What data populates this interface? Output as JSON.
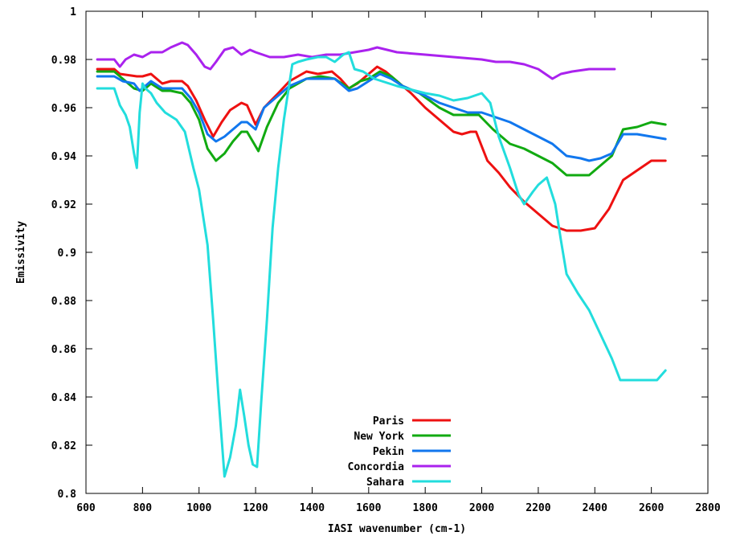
{
  "chart_data": {
    "type": "line",
    "title": "",
    "xlabel": "IASI wavenumber (cm-1)",
    "ylabel": "Emissivity",
    "xlim": [
      600,
      2800
    ],
    "ylim": [
      0.8,
      1.0
    ],
    "x_ticks": [
      600,
      800,
      1000,
      1200,
      1400,
      1600,
      1800,
      2000,
      2200,
      2400,
      2600,
      2800
    ],
    "x_tick_labels": [
      "600",
      "800",
      "1000",
      "1200",
      "1400",
      "1600",
      "1800",
      "2000",
      "2200",
      "2400",
      "2600",
      "2800"
    ],
    "y_ticks": [
      0.8,
      0.82,
      0.84,
      0.86,
      0.88,
      0.9,
      0.92,
      0.94,
      0.96,
      0.98,
      1.0
    ],
    "y_tick_labels": [
      "0.8",
      "0.82",
      "0.84",
      "0.86",
      "0.88",
      "0.9",
      "0.92",
      "0.94",
      "0.96",
      "0.98",
      "1"
    ],
    "grid": false,
    "legend_position": "bottom-center",
    "series": [
      {
        "name": "Paris",
        "color": "#ee1111",
        "points": [
          [
            640,
            0.976
          ],
          [
            700,
            0.976
          ],
          [
            720,
            0.974
          ],
          [
            780,
            0.973
          ],
          [
            800,
            0.973
          ],
          [
            830,
            0.974
          ],
          [
            870,
            0.97
          ],
          [
            900,
            0.971
          ],
          [
            940,
            0.971
          ],
          [
            960,
            0.969
          ],
          [
            990,
            0.963
          ],
          [
            1020,
            0.955
          ],
          [
            1050,
            0.948
          ],
          [
            1080,
            0.954
          ],
          [
            1110,
            0.959
          ],
          [
            1150,
            0.962
          ],
          [
            1170,
            0.961
          ],
          [
            1200,
            0.953
          ],
          [
            1230,
            0.96
          ],
          [
            1280,
            0.966
          ],
          [
            1320,
            0.971
          ],
          [
            1380,
            0.975
          ],
          [
            1420,
            0.974
          ],
          [
            1470,
            0.975
          ],
          [
            1500,
            0.972
          ],
          [
            1530,
            0.968
          ],
          [
            1560,
            0.97
          ],
          [
            1600,
            0.974
          ],
          [
            1630,
            0.977
          ],
          [
            1660,
            0.975
          ],
          [
            1700,
            0.971
          ],
          [
            1750,
            0.966
          ],
          [
            1800,
            0.96
          ],
          [
            1850,
            0.955
          ],
          [
            1900,
            0.95
          ],
          [
            1930,
            0.949
          ],
          [
            1960,
            0.95
          ],
          [
            1980,
            0.95
          ],
          [
            2000,
            0.944
          ],
          [
            2020,
            0.938
          ],
          [
            2060,
            0.933
          ],
          [
            2100,
            0.927
          ],
          [
            2150,
            0.921
          ],
          [
            2200,
            0.916
          ],
          [
            2250,
            0.911
          ],
          [
            2300,
            0.909
          ],
          [
            2350,
            0.909
          ],
          [
            2400,
            0.91
          ],
          [
            2450,
            0.918
          ],
          [
            2500,
            0.93
          ],
          [
            2550,
            0.934
          ],
          [
            2600,
            0.938
          ],
          [
            2650,
            0.938
          ]
        ]
      },
      {
        "name": "New York",
        "color": "#11aa11",
        "points": [
          [
            640,
            0.975
          ],
          [
            700,
            0.975
          ],
          [
            730,
            0.972
          ],
          [
            770,
            0.968
          ],
          [
            800,
            0.967
          ],
          [
            830,
            0.97
          ],
          [
            870,
            0.967
          ],
          [
            900,
            0.967
          ],
          [
            940,
            0.966
          ],
          [
            970,
            0.962
          ],
          [
            1000,
            0.955
          ],
          [
            1030,
            0.943
          ],
          [
            1060,
            0.938
          ],
          [
            1090,
            0.941
          ],
          [
            1120,
            0.946
          ],
          [
            1150,
            0.95
          ],
          [
            1170,
            0.95
          ],
          [
            1210,
            0.942
          ],
          [
            1240,
            0.952
          ],
          [
            1280,
            0.962
          ],
          [
            1320,
            0.968
          ],
          [
            1380,
            0.972
          ],
          [
            1430,
            0.973
          ],
          [
            1480,
            0.972
          ],
          [
            1530,
            0.968
          ],
          [
            1570,
            0.971
          ],
          [
            1600,
            0.972
          ],
          [
            1640,
            0.975
          ],
          [
            1680,
            0.973
          ],
          [
            1720,
            0.969
          ],
          [
            1780,
            0.966
          ],
          [
            1850,
            0.96
          ],
          [
            1900,
            0.957
          ],
          [
            1950,
            0.957
          ],
          [
            1990,
            0.957
          ],
          [
            2040,
            0.951
          ],
          [
            2100,
            0.945
          ],
          [
            2150,
            0.943
          ],
          [
            2200,
            0.94
          ],
          [
            2250,
            0.937
          ],
          [
            2300,
            0.932
          ],
          [
            2340,
            0.932
          ],
          [
            2380,
            0.932
          ],
          [
            2420,
            0.936
          ],
          [
            2460,
            0.94
          ],
          [
            2500,
            0.951
          ],
          [
            2550,
            0.952
          ],
          [
            2600,
            0.954
          ],
          [
            2650,
            0.953
          ]
        ]
      },
      {
        "name": "Pekin",
        "color": "#1177ee",
        "points": [
          [
            640,
            0.973
          ],
          [
            700,
            0.973
          ],
          [
            730,
            0.971
          ],
          [
            770,
            0.97
          ],
          [
            790,
            0.967
          ],
          [
            830,
            0.971
          ],
          [
            870,
            0.968
          ],
          [
            900,
            0.968
          ],
          [
            940,
            0.968
          ],
          [
            970,
            0.964
          ],
          [
            1000,
            0.958
          ],
          [
            1030,
            0.949
          ],
          [
            1060,
            0.946
          ],
          [
            1090,
            0.948
          ],
          [
            1120,
            0.951
          ],
          [
            1150,
            0.954
          ],
          [
            1170,
            0.954
          ],
          [
            1200,
            0.951
          ],
          [
            1230,
            0.96
          ],
          [
            1280,
            0.965
          ],
          [
            1320,
            0.969
          ],
          [
            1380,
            0.972
          ],
          [
            1430,
            0.972
          ],
          [
            1480,
            0.972
          ],
          [
            1530,
            0.967
          ],
          [
            1560,
            0.968
          ],
          [
            1600,
            0.971
          ],
          [
            1640,
            0.974
          ],
          [
            1680,
            0.972
          ],
          [
            1720,
            0.969
          ],
          [
            1800,
            0.965
          ],
          [
            1850,
            0.962
          ],
          [
            1900,
            0.96
          ],
          [
            1950,
            0.958
          ],
          [
            2000,
            0.958
          ],
          [
            2050,
            0.956
          ],
          [
            2100,
            0.954
          ],
          [
            2150,
            0.951
          ],
          [
            2200,
            0.948
          ],
          [
            2250,
            0.945
          ],
          [
            2300,
            0.94
          ],
          [
            2350,
            0.939
          ],
          [
            2380,
            0.938
          ],
          [
            2420,
            0.939
          ],
          [
            2460,
            0.941
          ],
          [
            2480,
            0.945
          ],
          [
            2500,
            0.949
          ],
          [
            2550,
            0.949
          ],
          [
            2600,
            0.948
          ],
          [
            2650,
            0.947
          ]
        ]
      },
      {
        "name": "Concordia",
        "color": "#aa22ee",
        "points": [
          [
            640,
            0.98
          ],
          [
            700,
            0.98
          ],
          [
            720,
            0.977
          ],
          [
            740,
            0.98
          ],
          [
            770,
            0.982
          ],
          [
            800,
            0.981
          ],
          [
            830,
            0.983
          ],
          [
            870,
            0.983
          ],
          [
            900,
            0.985
          ],
          [
            940,
            0.987
          ],
          [
            960,
            0.986
          ],
          [
            990,
            0.982
          ],
          [
            1020,
            0.977
          ],
          [
            1040,
            0.976
          ],
          [
            1060,
            0.979
          ],
          [
            1090,
            0.984
          ],
          [
            1120,
            0.985
          ],
          [
            1150,
            0.982
          ],
          [
            1180,
            0.984
          ],
          [
            1200,
            0.983
          ],
          [
            1250,
            0.981
          ],
          [
            1300,
            0.981
          ],
          [
            1350,
            0.982
          ],
          [
            1400,
            0.981
          ],
          [
            1450,
            0.982
          ],
          [
            1500,
            0.982
          ],
          [
            1550,
            0.983
          ],
          [
            1600,
            0.984
          ],
          [
            1630,
            0.985
          ],
          [
            1700,
            0.983
          ],
          [
            1800,
            0.982
          ],
          [
            1900,
            0.981
          ],
          [
            2000,
            0.98
          ],
          [
            2050,
            0.979
          ],
          [
            2100,
            0.979
          ],
          [
            2150,
            0.978
          ],
          [
            2200,
            0.976
          ],
          [
            2250,
            0.972
          ],
          [
            2280,
            0.974
          ],
          [
            2320,
            0.975
          ],
          [
            2380,
            0.976
          ],
          [
            2420,
            0.976
          ],
          [
            2470,
            0.976
          ]
        ]
      },
      {
        "name": "Sahara",
        "color": "#22dddd",
        "points": [
          [
            640,
            0.968
          ],
          [
            700,
            0.968
          ],
          [
            720,
            0.961
          ],
          [
            740,
            0.957
          ],
          [
            755,
            0.952
          ],
          [
            770,
            0.941
          ],
          [
            780,
            0.935
          ],
          [
            790,
            0.958
          ],
          [
            800,
            0.97
          ],
          [
            810,
            0.968
          ],
          [
            830,
            0.966
          ],
          [
            850,
            0.962
          ],
          [
            880,
            0.958
          ],
          [
            920,
            0.955
          ],
          [
            950,
            0.95
          ],
          [
            980,
            0.935
          ],
          [
            1000,
            0.926
          ],
          [
            1030,
            0.903
          ],
          [
            1050,
            0.872
          ],
          [
            1070,
            0.838
          ],
          [
            1090,
            0.807
          ],
          [
            1110,
            0.815
          ],
          [
            1130,
            0.828
          ],
          [
            1145,
            0.843
          ],
          [
            1160,
            0.832
          ],
          [
            1175,
            0.82
          ],
          [
            1190,
            0.812
          ],
          [
            1205,
            0.811
          ],
          [
            1220,
            0.838
          ],
          [
            1240,
            0.872
          ],
          [
            1260,
            0.91
          ],
          [
            1280,
            0.935
          ],
          [
            1300,
            0.955
          ],
          [
            1330,
            0.978
          ],
          [
            1350,
            0.979
          ],
          [
            1380,
            0.98
          ],
          [
            1420,
            0.981
          ],
          [
            1450,
            0.981
          ],
          [
            1480,
            0.979
          ],
          [
            1510,
            0.982
          ],
          [
            1530,
            0.983
          ],
          [
            1550,
            0.976
          ],
          [
            1580,
            0.975
          ],
          [
            1620,
            0.972
          ],
          [
            1700,
            0.969
          ],
          [
            1800,
            0.966
          ],
          [
            1850,
            0.965
          ],
          [
            1900,
            0.963
          ],
          [
            1950,
            0.964
          ],
          [
            2000,
            0.966
          ],
          [
            2030,
            0.962
          ],
          [
            2060,
            0.948
          ],
          [
            2100,
            0.935
          ],
          [
            2130,
            0.924
          ],
          [
            2150,
            0.92
          ],
          [
            2180,
            0.925
          ],
          [
            2200,
            0.928
          ],
          [
            2230,
            0.931
          ],
          [
            2260,
            0.92
          ],
          [
            2280,
            0.905
          ],
          [
            2300,
            0.891
          ],
          [
            2340,
            0.883
          ],
          [
            2380,
            0.876
          ],
          [
            2420,
            0.866
          ],
          [
            2460,
            0.856
          ],
          [
            2490,
            0.847
          ],
          [
            2550,
            0.847
          ],
          [
            2600,
            0.847
          ],
          [
            2620,
            0.847
          ],
          [
            2650,
            0.851
          ]
        ]
      }
    ]
  }
}
